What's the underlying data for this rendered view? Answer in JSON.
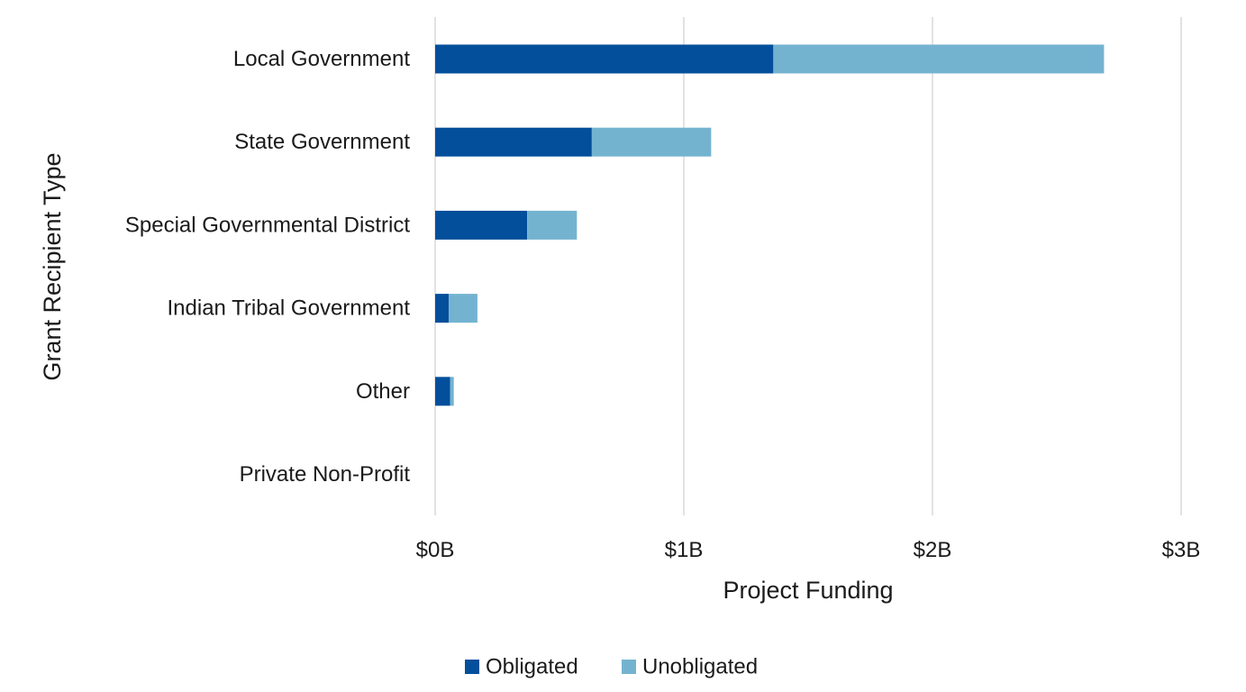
{
  "chart_data": {
    "type": "bar",
    "orientation": "horizontal",
    "stacked": true,
    "title": "",
    "xlabel": "Project Funding",
    "ylabel": "Grant Recipient Type",
    "categories": [
      "Local Government",
      "State Government",
      "Special Governmental District",
      "Indian Tribal Government",
      "Other",
      "Private Non-Profit"
    ],
    "series": [
      {
        "name": "Obligated",
        "color": "#034f9b",
        "values": [
          1.36,
          0.63,
          0.37,
          0.055,
          0.06,
          0.0
        ]
      },
      {
        "name": "Unobligated",
        "color": "#74b3d0",
        "values": [
          1.33,
          0.48,
          0.2,
          0.115,
          0.015,
          0.0
        ]
      }
    ],
    "xlim": [
      0,
      3
    ],
    "x_ticks": [
      {
        "value": 0,
        "label": "$0B"
      },
      {
        "value": 1,
        "label": "$1B"
      },
      {
        "value": 2,
        "label": "$2B"
      },
      {
        "value": 3,
        "label": "$3B"
      }
    ],
    "grid": "vertical",
    "legend_position": "bottom"
  }
}
